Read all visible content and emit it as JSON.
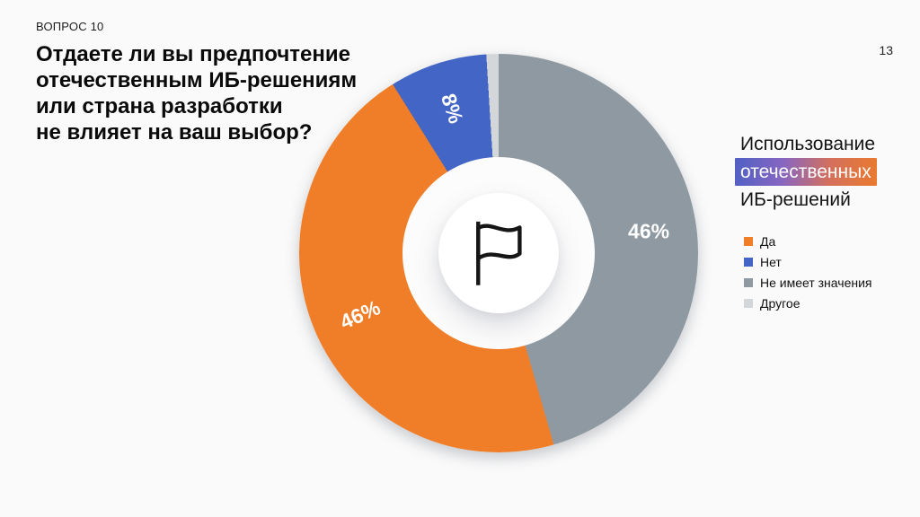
{
  "slide": {
    "kicker": "ВОПРОС 10",
    "title_lines": [
      "Отдаете ли вы предпочтение",
      "отечественным ИБ-решениям",
      "или страна разработки",
      "не влияет на ваш выбор?"
    ],
    "page_number": "13"
  },
  "panel": {
    "title_line1": "Использование",
    "title_highlight": "отечественных",
    "title_line3": "ИБ-решений",
    "highlight_gradient": [
      "#5060C4",
      "#8666C2",
      "#D4705C",
      "#EA7A2E"
    ]
  },
  "center_icon": "flag-icon",
  "chart_data": {
    "type": "pie",
    "title": "Использование отечественных ИБ-решений",
    "donut": true,
    "hole_ratio": 0.48,
    "start_angle_deg": 0,
    "direction": "clockwise",
    "label_radius_ratio": 0.76,
    "legend_position": "right",
    "segments": [
      {
        "label": "Да",
        "value": 46,
        "display_label": "46%",
        "color": "#F07D27",
        "label_rotation_deg": -24,
        "show_label": true
      },
      {
        "label": "Нет",
        "value": 8,
        "display_label": "8%",
        "color": "#4365C5",
        "label_rotation_deg": 72,
        "show_label": true
      },
      {
        "label": "Не имеет значения",
        "value": 46,
        "display_label": "46%",
        "color": "#8E99A1",
        "label_rotation_deg": 0,
        "show_label": true
      },
      {
        "label": "Другое",
        "value": 1,
        "display_label": "",
        "color": "#D4D7D9",
        "label_rotation_deg": 0,
        "show_label": false
      }
    ],
    "draw_order": [
      2,
      0,
      1,
      3
    ]
  }
}
